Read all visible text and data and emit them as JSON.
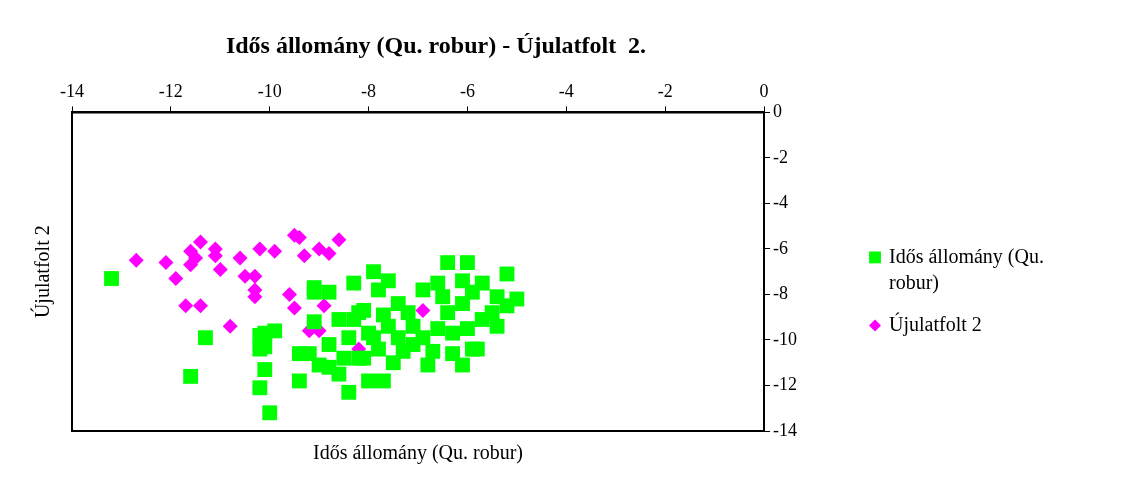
{
  "chart_data": {
    "type": "scatter",
    "title": "Idős állomány (Qu. robur) - Újulatfolt  2.",
    "xlabel": "Idős állomány (Qu. robur)",
    "ylabel": "Újulatfolt 2",
    "xlim": [
      -14,
      0
    ],
    "xticks": [
      -14,
      -12,
      -10,
      -8,
      -6,
      -4,
      -2,
      0
    ],
    "ylim": [
      -14,
      0
    ],
    "yticks": [
      -14,
      -12,
      -10,
      -8,
      -6,
      -4,
      -2,
      0
    ],
    "grid": false,
    "legend": "right",
    "series": [
      {
        "name": "Idős állomány (Qu. robur)",
        "color": "#00ff00",
        "marker": "square",
        "x": [
          -13.2,
          -11.6,
          -11.3,
          -10.0,
          -10.2,
          -10.1,
          -10.1,
          -10.1,
          -9.9,
          -10.2,
          -10.2,
          -9.4,
          -9.4,
          -9.1,
          -8.8,
          -9.1,
          -8.3,
          -8.4,
          -8.6,
          -9.2,
          -6.4,
          -6.0,
          -5.2,
          -7.9,
          -9.1,
          -7.6,
          -5.0,
          -5.2,
          -5.4,
          -5.8,
          -6.1,
          -6.8,
          -7.7,
          -8.0,
          -9.0,
          -7.5,
          -7.1,
          -8.6,
          -8.1,
          -7.8,
          -7.4,
          -6.9,
          -6.6,
          -6.1,
          -5.7,
          -6.1,
          -6.4,
          -5.7,
          -6.6,
          -7.1,
          -7.6,
          -8.0,
          -8.4,
          -8.8,
          -8.8,
          -8.2,
          -7.8,
          -7.3,
          -6.7,
          -6.3,
          -5.9,
          -6.3,
          -6.0,
          -5.5,
          -5.4,
          -5.9,
          -6.5,
          -7.2,
          -7.7,
          -8.3,
          -7.4,
          -6.9,
          -7.9,
          -8.2,
          -8.1,
          -8.5
        ],
        "values": [
          -7.3,
          -11.6,
          -9.9,
          -13.2,
          -12.1,
          -11.3,
          -10.3,
          -9.7,
          -9.6,
          -9.8,
          -10.4,
          -11.8,
          -10.6,
          -7.9,
          -7.9,
          -9.2,
          -7.5,
          -12.3,
          -11.5,
          -10.6,
          -6.6,
          -6.6,
          -7.1,
          -7.0,
          -7.7,
          -7.4,
          -8.2,
          -8.5,
          -9.4,
          -10.4,
          -11.1,
          -11.1,
          -11.8,
          -11.8,
          -11.1,
          -11.0,
          -10.2,
          -9.1,
          -8.7,
          -7.8,
          -8.4,
          -7.8,
          -7.5,
          -7.4,
          -7.5,
          -8.4,
          -8.8,
          -9.1,
          -9.5,
          -9.4,
          -9.4,
          -9.7,
          -9.9,
          -10.2,
          -11.2,
          -10.8,
          -10.4,
          -10.5,
          -10.5,
          -10.6,
          -10.4,
          -9.7,
          -9.5,
          -8.8,
          -8.1,
          -7.9,
          -8.1,
          -8.8,
          -8.9,
          -9.1,
          -9.9,
          -9.9,
          -9.9,
          -8.8,
          -10.8,
          -10.8
        ]
      },
      {
        "name": "Újulatfolt 2",
        "color": "#ff00ff",
        "marker": "diamond",
        "x": [
          -12.7,
          -12.1,
          -11.9,
          -11.4,
          -11.6,
          -11.5,
          -11.6,
          -11.1,
          -11.1,
          -11.0,
          -10.6,
          -10.5,
          -10.3,
          -10.3,
          -10.3,
          -10.2,
          -9.9,
          -9.5,
          -9.4,
          -9.3,
          -9.0,
          -8.8,
          -8.6,
          -11.7,
          -11.4,
          -10.8,
          -9.6,
          -9.5,
          -8.9,
          -9.2,
          -9.0,
          -8.2,
          -6.9
        ],
        "values": [
          -6.5,
          -6.6,
          -7.3,
          -5.7,
          -6.1,
          -6.4,
          -6.7,
          -6.0,
          -6.3,
          -6.9,
          -6.4,
          -7.2,
          -7.2,
          -7.8,
          -8.1,
          -6.0,
          -6.1,
          -5.4,
          -5.5,
          -6.3,
          -6.0,
          -6.2,
          -5.6,
          -8.5,
          -8.5,
          -9.4,
          -8.0,
          -8.6,
          -8.5,
          -9.6,
          -9.6,
          -10.4,
          -8.7
        ]
      }
    ]
  }
}
